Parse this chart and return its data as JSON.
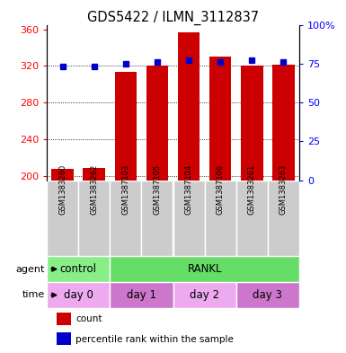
{
  "title": "GDS5422 / ILMN_3112837",
  "samples": [
    "GSM1383260",
    "GSM1383262",
    "GSM1387103",
    "GSM1387105",
    "GSM1387104",
    "GSM1387106",
    "GSM1383261",
    "GSM1383263"
  ],
  "counts": [
    207,
    208,
    313,
    320,
    357,
    330,
    320,
    321
  ],
  "percentile_ranks": [
    73,
    73,
    75,
    76,
    77,
    76,
    77,
    76
  ],
  "ylim_left": [
    195,
    365
  ],
  "ylim_right": [
    0,
    100
  ],
  "yticks_left": [
    200,
    240,
    280,
    320,
    360
  ],
  "yticks_right": [
    0,
    25,
    50,
    75,
    100
  ],
  "ytick_labels_right": [
    "0",
    "25",
    "50",
    "75",
    "100%"
  ],
  "bar_color": "#cc0000",
  "dot_color": "#0000cc",
  "agent_labels": [
    {
      "label": "control",
      "span": [
        0,
        2
      ],
      "color": "#88ee88"
    },
    {
      "label": "RANKL",
      "span": [
        2,
        8
      ],
      "color": "#66dd66"
    }
  ],
  "time_labels": [
    {
      "label": "day 0",
      "span": [
        0,
        2
      ],
      "color": "#eeaaee"
    },
    {
      "label": "day 1",
      "span": [
        2,
        4
      ],
      "color": "#cc77cc"
    },
    {
      "label": "day 2",
      "span": [
        4,
        6
      ],
      "color": "#eeaaee"
    },
    {
      "label": "day 3",
      "span": [
        6,
        8
      ],
      "color": "#cc77cc"
    }
  ],
  "sample_bg_color": "#cccccc",
  "legend_count_color": "#cc0000",
  "legend_dot_color": "#0000cc",
  "grid_linestyle": "dotted",
  "bar_width": 0.7
}
